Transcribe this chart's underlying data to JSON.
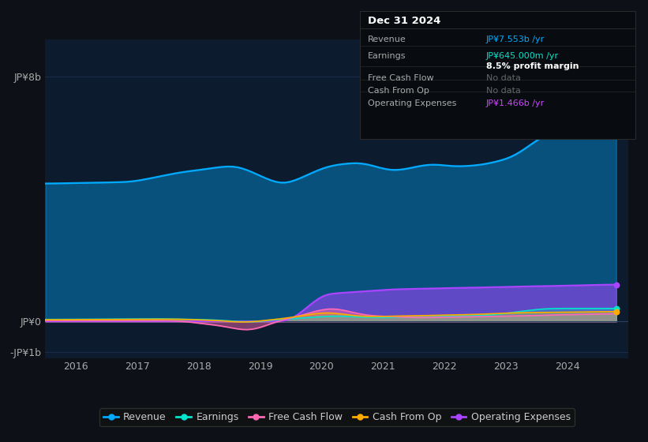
{
  "background_color": "#0d1117",
  "plot_bg_color": "#0d1b2e",
  "ylabel_top": "JP¥8b",
  "ylabel_zero": "JP¥0",
  "ylabel_bottom": "-JP¥1b",
  "x_labels": [
    "2017",
    "2018",
    "2019",
    "2020",
    "2021",
    "2022",
    "2023",
    "2024"
  ],
  "ylim": [
    -1.2,
    9.2
  ],
  "colors": {
    "revenue": "#00aaff",
    "earnings": "#00e5cc",
    "free_cash_flow": "#ff69b4",
    "cash_from_op": "#ffaa00",
    "operating_expenses": "#aa44ff"
  },
  "info_box": {
    "date": "Dec 31 2024",
    "revenue_label": "Revenue",
    "revenue_value": "JP¥7.553b /yr",
    "revenue_color": "#00aaff",
    "earnings_label": "Earnings",
    "earnings_value": "JP¥645.000m /yr",
    "earnings_color": "#00e5cc",
    "profit_margin": "8.5% profit margin",
    "fcf_label": "Free Cash Flow",
    "fcf_value": "No data",
    "cfop_label": "Cash From Op",
    "cfop_value": "No data",
    "opex_label": "Operating Expenses",
    "opex_value": "JP¥1.466b /yr",
    "opex_color": "#cc44ff"
  },
  "legend": [
    {
      "label": "Revenue",
      "color": "#00aaff"
    },
    {
      "label": "Earnings",
      "color": "#00e5cc"
    },
    {
      "label": "Free Cash Flow",
      "color": "#ff69b4"
    },
    {
      "label": "Cash From Op",
      "color": "#ffaa00"
    },
    {
      "label": "Operating Expenses",
      "color": "#aa44ff"
    }
  ]
}
